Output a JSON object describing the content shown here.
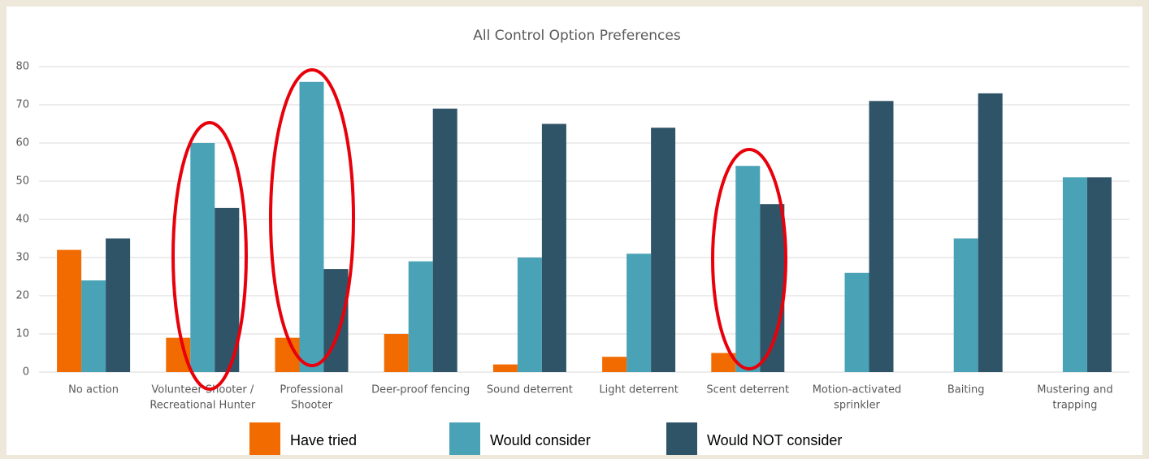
{
  "chart_data": {
    "type": "bar",
    "title": "All Control Option Preferences",
    "categories": [
      [
        "No action"
      ],
      [
        "Volunteer Shooter /",
        "Recreational Hunter"
      ],
      [
        "Professional",
        "Shooter"
      ],
      [
        "Deer-proof fencing"
      ],
      [
        "Sound deterrent"
      ],
      [
        "Light deterrent"
      ],
      [
        "Scent deterrent"
      ],
      [
        "Motion-activated",
        "sprinkler"
      ],
      [
        "Baiting"
      ],
      [
        "Mustering and",
        "trapping"
      ]
    ],
    "series": [
      {
        "name": "Have tried",
        "color": "#f26b00",
        "values": [
          32,
          9,
          9,
          10,
          2,
          4,
          5,
          null,
          null,
          null
        ]
      },
      {
        "name": "Would consider",
        "color": "#4aa2b6",
        "values": [
          24,
          60,
          76,
          29,
          30,
          31,
          54,
          26,
          35,
          51
        ]
      },
      {
        "name": "Would NOT consider",
        "color": "#2f5467",
        "values": [
          35,
          43,
          27,
          69,
          65,
          64,
          44,
          71,
          73,
          51
        ]
      }
    ],
    "ylim": [
      0,
      80
    ],
    "yticks": [
      0,
      10,
      20,
      30,
      40,
      50,
      60,
      70,
      80
    ],
    "grid": true
  }
}
